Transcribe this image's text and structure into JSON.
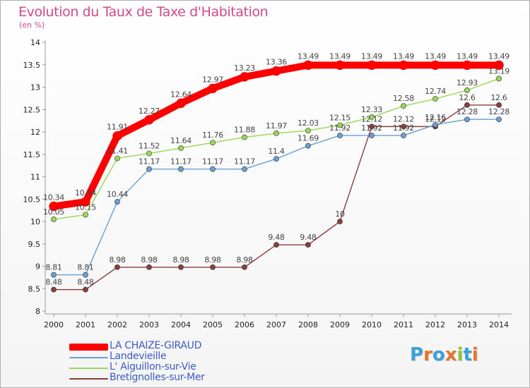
{
  "title": "Evolution du Taux de Taxe d'Habitation",
  "subtitle": "(en %)",
  "logo": {
    "text": "Proxiti",
    "colors": [
      "#3aa0d8",
      "#e8732a",
      "#3aa0d8",
      "#e8732a",
      "#8bc53f",
      "#3aa0d8",
      "#e8732a"
    ]
  },
  "chart_data": {
    "type": "line",
    "title": "Evolution du Taux de Taxe d'Habitation",
    "ylabel": "(en %)",
    "xlabel": "",
    "x": [
      "2000",
      "2001",
      "2002",
      "2003",
      "2004",
      "2005",
      "2006",
      "2007",
      "2008",
      "2009",
      "2010",
      "2011",
      "2012",
      "2013",
      "2014"
    ],
    "ylim": [
      8,
      14
    ],
    "yticks": [
      "8",
      "8.5",
      "9",
      "9.5",
      "10",
      "10.5",
      "11",
      "11.5",
      "12",
      "12.5",
      "13",
      "13.5",
      "14"
    ],
    "grid": false,
    "legend_position": "bottom-left",
    "series": [
      {
        "name": "LA CHAIZE-GIRAUD",
        "color": "#ff0000",
        "values": [
          10.34,
          10.44,
          11.91,
          12.27,
          12.64,
          12.97,
          13.23,
          13.36,
          13.49,
          13.49,
          13.49,
          13.49,
          13.49,
          13.49,
          13.49
        ],
        "labels": [
          "10.34",
          "10.44",
          "11.91",
          "12.27",
          "12.64",
          "12.97",
          "13.23",
          "13.36",
          "13.49",
          "13.49",
          "13.49",
          "13.49",
          "13.49",
          "13.49",
          "13.49"
        ]
      },
      {
        "name": "Landevieille",
        "color": "#6a9fd0",
        "values": [
          8.81,
          8.81,
          10.44,
          11.17,
          11.17,
          11.17,
          11.17,
          11.4,
          11.69,
          11.92,
          11.92,
          11.92,
          12.16,
          12.28,
          12.28
        ],
        "labels": [
          "8.81",
          "8.81",
          "10.44",
          "11.17",
          "11.17",
          "11.17",
          "11.17",
          "11.4",
          "11.69",
          "11.92",
          "11.92",
          "11.92",
          "12.16",
          "12.28",
          "12.28"
        ]
      },
      {
        "name": "L' Aiguillon-sur-Vie",
        "color": "#9ad65a",
        "values": [
          10.05,
          10.15,
          11.41,
          11.52,
          11.64,
          11.76,
          11.88,
          11.97,
          12.03,
          12.15,
          12.33,
          12.58,
          12.74,
          12.93,
          13.19
        ],
        "labels": [
          "10.05",
          "10.15",
          "11.41",
          "11.52",
          "11.64",
          "11.76",
          "11.88",
          "11.97",
          "12.03",
          "12.15",
          "12.33",
          "12.58",
          "12.74",
          "12.93",
          "13.19"
        ]
      },
      {
        "name": "Bretignolles-sur-Mer",
        "color": "#8a3d3d",
        "values": [
          8.48,
          8.48,
          8.98,
          8.98,
          8.98,
          8.98,
          8.98,
          9.48,
          9.48,
          10,
          12.12,
          12.12,
          12.12,
          12.6,
          12.6
        ],
        "labels": [
          "8.48",
          "8.48",
          "8.98",
          "8.98",
          "8.98",
          "8.98",
          "8.98",
          "9.48",
          "9.48",
          "10",
          "12.12",
          "12.12",
          "12.12",
          "12.6",
          "12.6"
        ]
      }
    ]
  }
}
